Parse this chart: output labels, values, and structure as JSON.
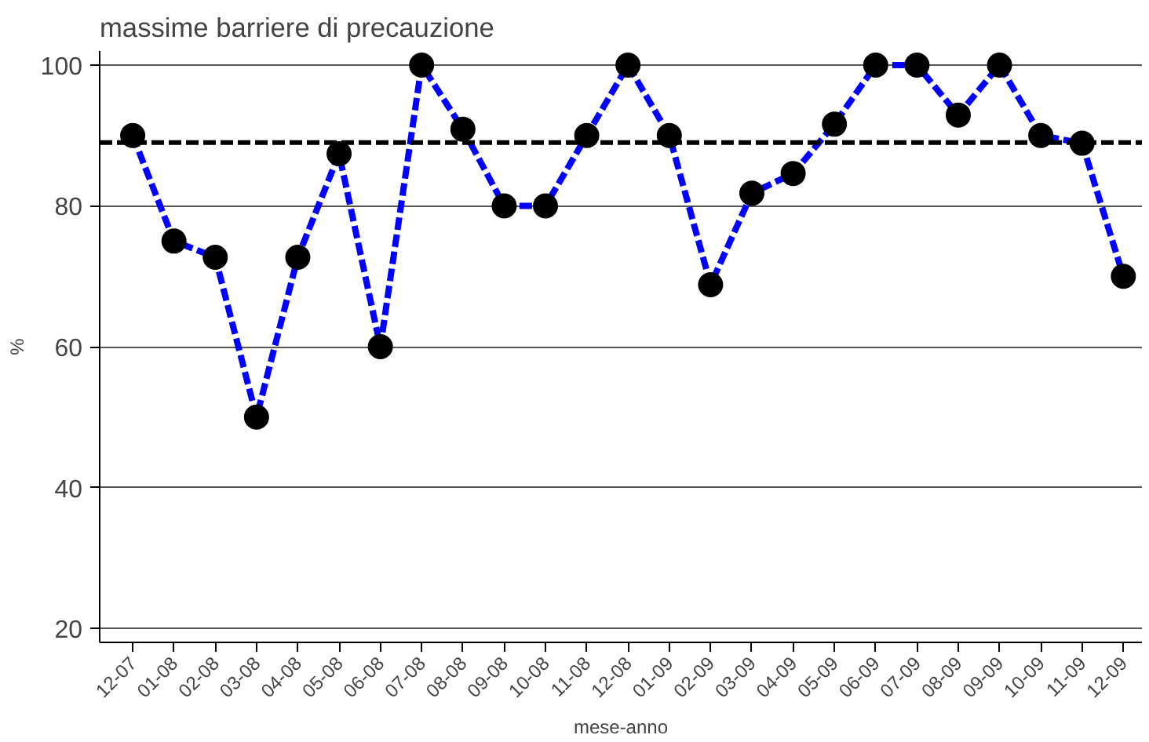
{
  "chart_data": {
    "type": "line",
    "title": "massime barriere di precauzione",
    "xlabel": "mese-anno",
    "ylabel": "%",
    "categories": [
      "12-07",
      "01-08",
      "02-08",
      "03-08",
      "04-08",
      "05-08",
      "06-08",
      "07-08",
      "08-08",
      "09-08",
      "10-08",
      "11-08",
      "12-08",
      "01-09",
      "02-09",
      "03-09",
      "04-09",
      "05-09",
      "06-09",
      "07-09",
      "08-09",
      "09-09",
      "10-09",
      "11-09",
      "12-09"
    ],
    "series": [
      {
        "color": "#0000ff",
        "values": [
          90,
          75,
          72.7,
          50,
          72.7,
          87.4,
          60,
          100,
          90.9,
          80,
          80,
          90,
          100,
          90,
          68.8,
          81.8,
          84.6,
          91.6,
          100,
          100,
          92.9,
          100,
          90,
          88.9,
          70
        ]
      }
    ],
    "ref_lines": [
      {
        "axis": "y",
        "value": 89,
        "color": "#000000",
        "line_style": "dashed"
      }
    ],
    "ylim": [
      18,
      102
    ],
    "yticks": [
      20,
      40,
      60,
      80,
      100
    ],
    "grid": "y",
    "marker": "circle",
    "line_style": "dashed"
  }
}
